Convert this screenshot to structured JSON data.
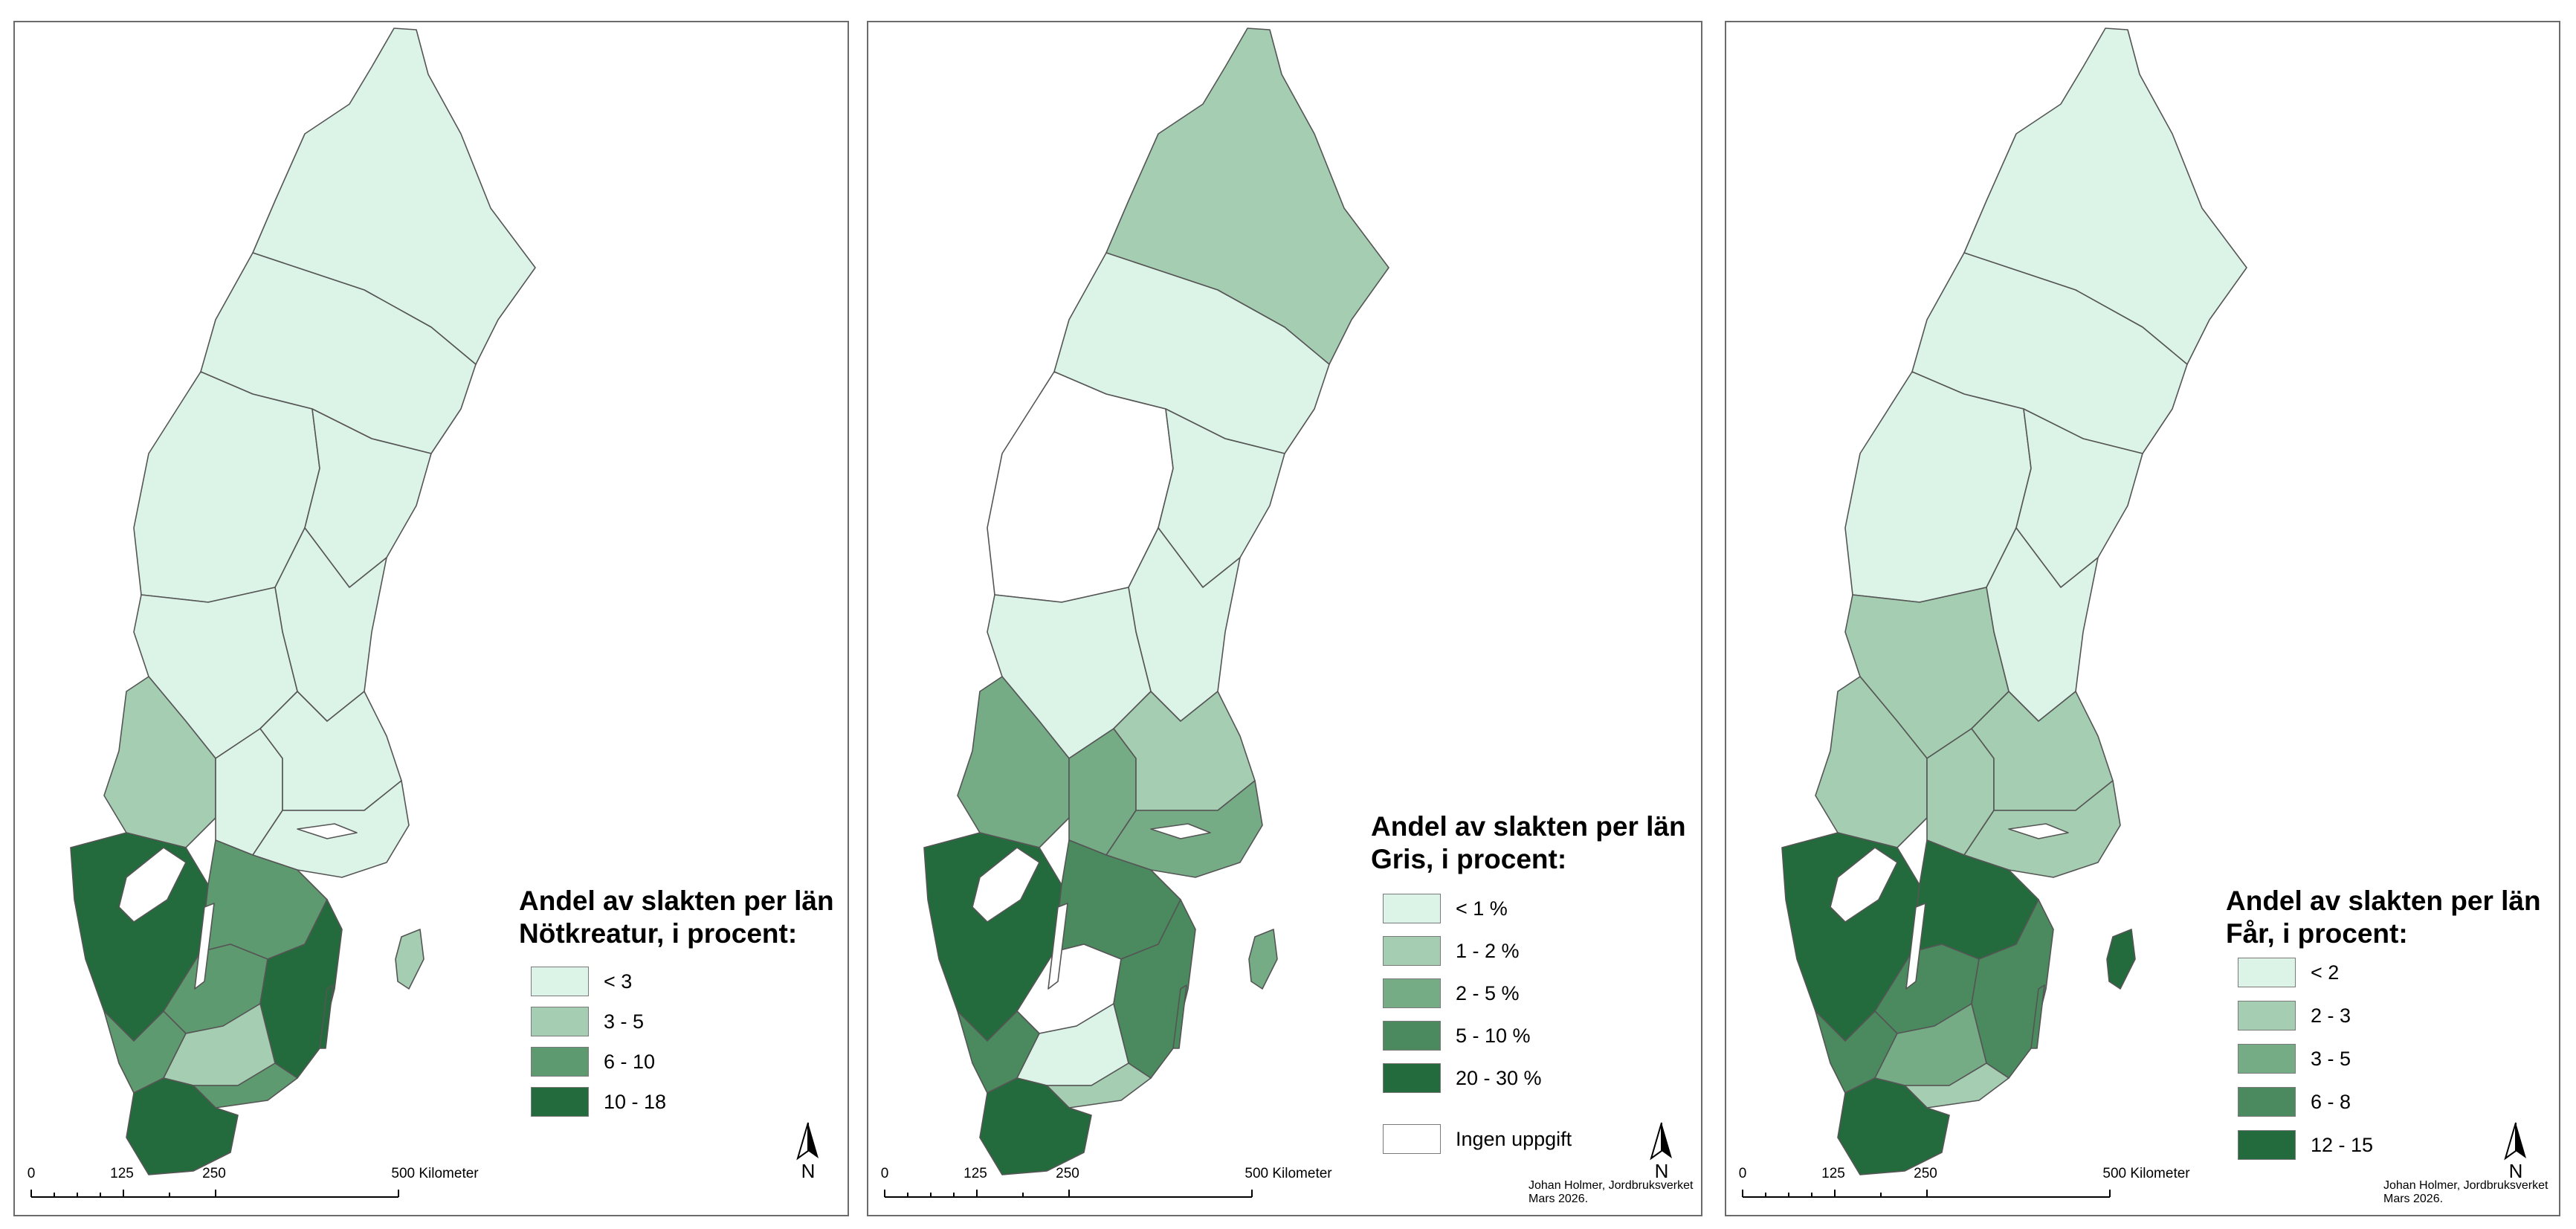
{
  "colors": {
    "class1": "#dcf3e8",
    "class2": "#a4cdb1",
    "class3": "#75ab85",
    "class4": "#4a8a5e",
    "class5": "#236b3c",
    "no_data": "#ffffff",
    "border": "#555555"
  },
  "scale": {
    "labels": [
      "0",
      "125",
      "250",
      "500 Kilometer"
    ]
  },
  "north_label": "N",
  "credit": {
    "line1": "Johan Holmer, Jordbruksverket",
    "line2": "Mars 2026."
  },
  "panels": [
    {
      "legend": {
        "title1": "Andel av slakten per län",
        "title2": "Nötkreatur, i procent:",
        "items": [
          {
            "label": "< 3",
            "color": "#dcf3e8"
          },
          {
            "label": "3 - 5",
            "color": "#a4cdb1"
          },
          {
            "label": "6 - 10",
            "color": "#5e9a6f"
          },
          {
            "label": "10 - 18",
            "color": "#236b3c"
          }
        ]
      }
    },
    {
      "legend": {
        "title1": "Andel av slakten per län",
        "title2": "Gris, i procent:",
        "items": [
          {
            "label": "< 1 %",
            "color": "#dcf3e8"
          },
          {
            "label": "1 - 2 %",
            "color": "#a4cdb1"
          },
          {
            "label": "2 - 5 %",
            "color": "#75ab85"
          },
          {
            "label": "5 - 10 %",
            "color": "#4a8a5e"
          },
          {
            "label": "20 - 30 %",
            "color": "#236b3c"
          }
        ],
        "no_data_label": "Ingen uppgift"
      }
    },
    {
      "legend": {
        "title1": "Andel av slakten per län",
        "title2": "Får, i procent:",
        "items": [
          {
            "label": "< 2",
            "color": "#dcf3e8"
          },
          {
            "label": "2 - 3",
            "color": "#a4cdb1"
          },
          {
            "label": "3 - 5",
            "color": "#75ab85"
          },
          {
            "label": "6 - 8",
            "color": "#4a8a5e"
          },
          {
            "label": "12 - 15",
            "color": "#236b3c"
          }
        ]
      }
    }
  ]
}
